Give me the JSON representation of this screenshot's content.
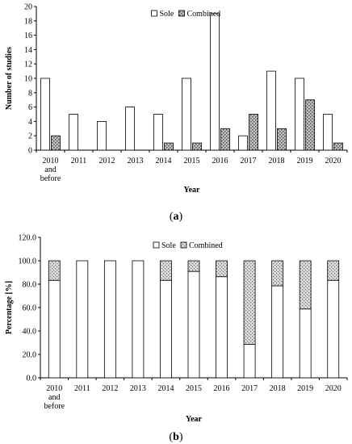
{
  "chart_data": [
    {
      "type": "bar",
      "id": "a",
      "caption": "(a)",
      "categories": [
        "2010\nand\nbefore",
        "2011",
        "2012",
        "2013",
        "2014",
        "2015",
        "2016",
        "2017",
        "2018",
        "2019",
        "2020"
      ],
      "series": [
        {
          "name": "Sole",
          "values": [
            10,
            5,
            4,
            6,
            5,
            10,
            19,
            2,
            11,
            10,
            5
          ],
          "color": "#ffffff"
        },
        {
          "name": "Combined",
          "values": [
            2,
            0,
            0,
            0,
            1,
            1,
            3,
            5,
            3,
            7,
            1
          ],
          "color": "#a0a0a0"
        }
      ],
      "xlabel": "Year",
      "ylabel": "Number of studies",
      "ylim": [
        0,
        20
      ],
      "yticks": [
        0,
        2,
        4,
        6,
        8,
        10,
        12,
        14,
        16,
        18,
        20
      ],
      "legend": "top-center",
      "grid": false
    },
    {
      "type": "bar",
      "id": "b",
      "stacked": true,
      "caption": "(b)",
      "categories": [
        "2010\nand\nbefore",
        "2011",
        "2012",
        "2013",
        "2014",
        "2015",
        "2016",
        "2017",
        "2018",
        "2019",
        "2020"
      ],
      "series": [
        {
          "name": "Sole",
          "values": [
            83.3,
            100,
            100,
            100,
            83.3,
            90.9,
            86.4,
            28.6,
            78.6,
            58.8,
            83.3
          ],
          "color": "#ffffff"
        },
        {
          "name": "Combined",
          "values": [
            16.7,
            0,
            0,
            0,
            16.7,
            9.1,
            13.6,
            71.4,
            21.4,
            41.2,
            16.7
          ],
          "color": "#c8c8c8"
        }
      ],
      "xlabel": "Year",
      "ylabel": "Percentage [%]",
      "ylim": [
        0,
        120
      ],
      "yticks": [
        "0.0",
        "20.0",
        "40.0",
        "60.0",
        "80.0",
        "100.0",
        "120.0"
      ],
      "legend": "top-center",
      "grid": false
    }
  ]
}
